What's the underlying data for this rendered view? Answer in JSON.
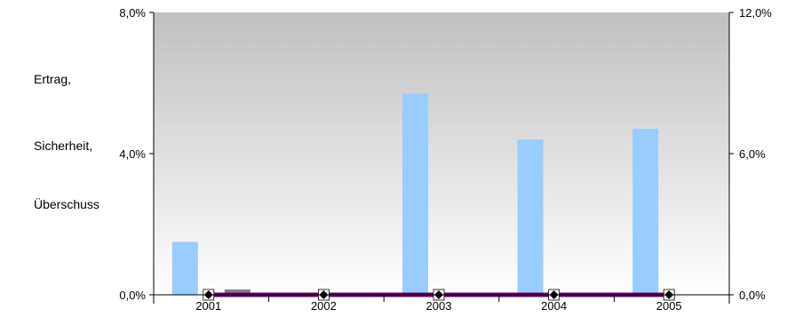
{
  "chart_data": {
    "type": "bar",
    "ylabel_lines": [
      "Ertrag,",
      "Sicherheit,",
      "Überschuss"
    ],
    "categories": [
      "2001",
      "2002",
      "2003",
      "2004",
      "2005"
    ],
    "left_axis": {
      "ylim": [
        0,
        8.0
      ],
      "ticks": [
        "0,0%",
        "4,0%",
        "8,0%"
      ]
    },
    "right_axis": {
      "ylim": [
        0,
        12.0
      ],
      "ticks": [
        "0,0%",
        "6,0%",
        "12,0%"
      ]
    },
    "series": [
      {
        "axis": "left",
        "kind": "bar",
        "color": "#99ccff",
        "values": [
          1.5,
          0.0,
          5.7,
          4.4,
          4.7
        ]
      },
      {
        "axis": "left",
        "kind": "bar",
        "color": "#808080",
        "values": [
          0.15,
          0.0,
          0.0,
          0.0,
          0.0
        ]
      },
      {
        "axis": "right",
        "kind": "line",
        "color": "#660066",
        "values": [
          0.0,
          0.0,
          0.0,
          0.0,
          0.0
        ]
      },
      {
        "axis": "right",
        "kind": "marker",
        "marker": "diamond",
        "color": "#000000",
        "values": [
          0.0,
          0.0,
          0.0,
          0.0,
          0.0
        ]
      }
    ],
    "background": {
      "gradient_top": "#c0c0c0",
      "gradient_bottom": "#ffffff"
    },
    "grid": false,
    "legend": "none"
  }
}
